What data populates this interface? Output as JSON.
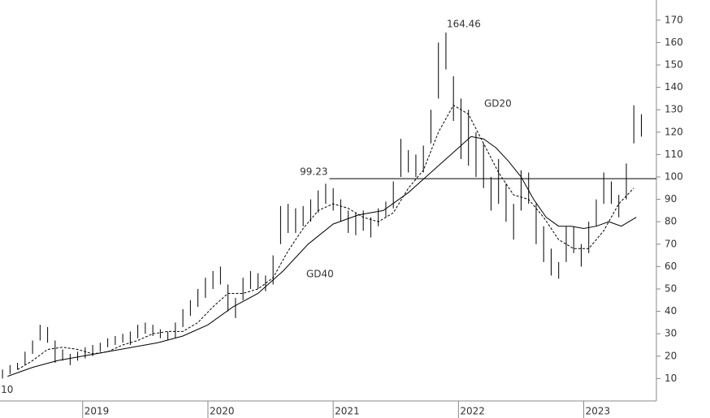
{
  "chart_data": {
    "type": "hilo",
    "x": [
      2018.36,
      2018.42,
      2018.48,
      2018.54,
      2018.6,
      2018.66,
      2018.72,
      2018.78,
      2018.84,
      2018.9,
      2018.96,
      2019.02,
      2019.08,
      2019.14,
      2019.2,
      2019.26,
      2019.32,
      2019.38,
      2019.44,
      2019.5,
      2019.56,
      2019.62,
      2019.68,
      2019.74,
      2019.8,
      2019.86,
      2019.92,
      2019.98,
      2020.04,
      2020.1,
      2020.16,
      2020.22,
      2020.28,
      2020.34,
      2020.4,
      2020.46,
      2020.52,
      2020.58,
      2020.64,
      2020.7,
      2020.76,
      2020.82,
      2020.88,
      2020.94,
      2021.0,
      2021.06,
      2021.12,
      2021.18,
      2021.24,
      2021.3,
      2021.36,
      2021.42,
      2021.48,
      2021.54,
      2021.6,
      2021.66,
      2021.72,
      2021.78,
      2021.84,
      2021.9,
      2021.96,
      2022.02,
      2022.08,
      2022.14,
      2022.2,
      2022.26,
      2022.32,
      2022.38,
      2022.44,
      2022.5,
      2022.56,
      2022.62,
      2022.68,
      2022.74,
      2022.8,
      2022.86,
      2022.92,
      2022.98,
      2023.04,
      2023.1,
      2023.16,
      2023.22,
      2023.28,
      2023.34,
      2023.4,
      2023.46
    ],
    "high": [
      14,
      16,
      17,
      22,
      27,
      34,
      33,
      27,
      23,
      21,
      22,
      24,
      25,
      26,
      28,
      29,
      30,
      31,
      34,
      35,
      34,
      32,
      31,
      35,
      41,
      45,
      50,
      55,
      58,
      60,
      52,
      46,
      55,
      58,
      57,
      56,
      65,
      87,
      88,
      86,
      87,
      90,
      94,
      97,
      95,
      90,
      85,
      84,
      85,
      82,
      86,
      89,
      98,
      117,
      112,
      110,
      114,
      130,
      160,
      164.46,
      145,
      135,
      130,
      120,
      115,
      100,
      108,
      97,
      88,
      103,
      102,
      88,
      78,
      68,
      62,
      78,
      78,
      70,
      80,
      90,
      102,
      98,
      92,
      106,
      132,
      128
    ],
    "low": [
      10,
      12,
      14,
      16,
      21,
      27,
      26,
      17,
      18,
      16,
      18,
      19,
      20,
      22,
      24,
      25,
      26,
      25,
      28,
      30,
      29,
      28,
      27,
      28,
      33,
      38,
      42,
      46,
      50,
      52,
      40,
      37,
      45,
      50,
      50,
      49,
      52,
      70,
      75,
      75,
      78,
      80,
      84,
      88,
      85,
      80,
      75,
      74,
      76,
      73,
      78,
      82,
      86,
      100,
      102,
      100,
      102,
      115,
      135,
      148,
      125,
      108,
      105,
      100,
      95,
      85,
      88,
      80,
      72,
      85,
      88,
      70,
      62,
      56,
      54.57,
      62,
      66,
      60,
      66,
      78,
      88,
      88,
      82,
      90,
      115,
      118
    ],
    "series": [
      {
        "name": "GD20",
        "x": [
          2018.48,
          2018.6,
          2018.72,
          2018.84,
          2018.96,
          2019.08,
          2019.2,
          2019.32,
          2019.44,
          2019.56,
          2019.68,
          2019.8,
          2019.92,
          2020.04,
          2020.16,
          2020.28,
          2020.4,
          2020.52,
          2020.64,
          2020.76,
          2020.88,
          2021.0,
          2021.12,
          2021.24,
          2021.36,
          2021.48,
          2021.6,
          2021.72,
          2021.84,
          2021.96,
          2022.08,
          2022.2,
          2022.32,
          2022.44,
          2022.56,
          2022.68,
          2022.8,
          2022.92,
          2023.04,
          2023.16,
          2023.28,
          2023.4
        ],
        "values": [
          14,
          18,
          23,
          24,
          23,
          21,
          22,
          25,
          27,
          30,
          31,
          31,
          35,
          42,
          48,
          48,
          50,
          55,
          67,
          77,
          85,
          88,
          86,
          82,
          80,
          84,
          95,
          103,
          120,
          132,
          128,
          115,
          102,
          92,
          90,
          82,
          72,
          68,
          68,
          76,
          88,
          95
        ]
      },
      {
        "name": "GD40",
        "x": [
          2018.4,
          2018.6,
          2018.8,
          2019.0,
          2019.2,
          2019.4,
          2019.6,
          2019.8,
          2020.0,
          2020.2,
          2020.4,
          2020.6,
          2020.8,
          2021.0,
          2021.2,
          2021.4,
          2021.6,
          2021.8,
          2022.0,
          2022.1,
          2022.2,
          2022.3,
          2022.4,
          2022.5,
          2022.6,
          2022.7,
          2022.8,
          2022.9,
          2023.0,
          2023.1,
          2023.2,
          2023.3,
          2023.42
        ],
        "values": [
          11,
          15,
          18,
          20,
          22,
          24,
          26,
          29,
          34,
          42,
          48,
          58,
          70,
          79,
          83,
          85,
          93,
          103,
          113,
          118,
          117,
          113,
          107,
          100,
          90,
          82,
          78,
          78,
          77,
          78,
          80,
          78,
          82
        ]
      }
    ],
    "reference_line": {
      "value": 99.23,
      "x_start": 2020.97
    },
    "xlim": [
      2018.34,
      2023.58
    ],
    "xticks": [
      2019,
      2020,
      2021,
      2022,
      2023
    ],
    "ylim": [
      0,
      179
    ],
    "yticks": [
      10,
      20,
      30,
      40,
      50,
      60,
      70,
      80,
      90,
      100,
      110,
      120,
      130,
      140,
      150,
      160,
      170
    ]
  }
}
